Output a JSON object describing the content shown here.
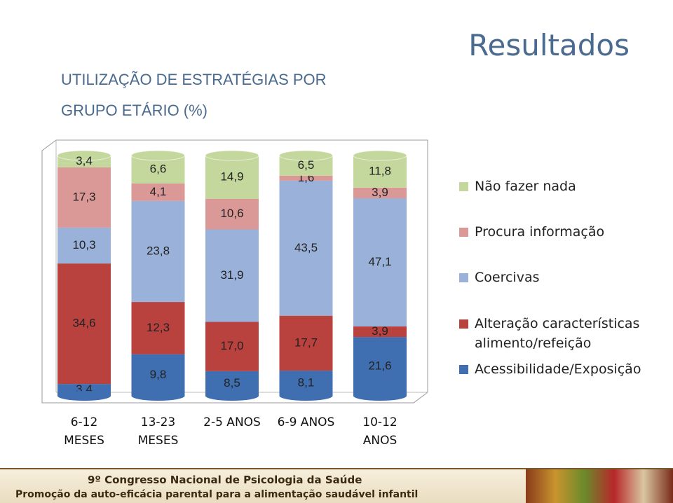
{
  "header": {
    "title": "Resultados",
    "subtitle": "UTILIZAÇÃO DE ESTRATÉGIAS POR GRUPO ETÁRIO (%)"
  },
  "chart_data": {
    "type": "bar",
    "stacking": "percent",
    "categories": [
      "6-12\nMESES",
      "13-23\nMESES",
      "2-5 ANOS",
      "6-9 ANOS",
      "10-12\nANOS"
    ],
    "series": [
      {
        "name": "Acessibilidade/Exposição",
        "color": "#3f6fb0",
        "values": [
          3.4,
          9.8,
          8.5,
          8.1,
          21.6
        ],
        "value_labels": [
          "3,4",
          "9,8",
          "8,5",
          "8,1",
          "21,6"
        ]
      },
      {
        "name": "Alteração características alimento/refeição",
        "color": "#b9413e",
        "values": [
          34.6,
          12.3,
          17.0,
          17.7,
          3.9
        ],
        "value_labels": [
          "34,6",
          "12,3",
          "17,0",
          "17,7",
          "3,9"
        ]
      },
      {
        "name": "Coercivas",
        "color": "#9ab2da",
        "values": [
          10.3,
          23.8,
          31.9,
          43.5,
          47.1
        ],
        "value_labels": [
          "10,3",
          "23,8",
          "31,9",
          "43,5",
          "47,1"
        ]
      },
      {
        "name": "Procura informação",
        "color": "#da9896",
        "values": [
          17.3,
          4.1,
          10.6,
          1.6,
          3.9
        ],
        "value_labels": [
          "17,3",
          "4,1",
          "10,6",
          "1,6",
          "3,9"
        ]
      },
      {
        "name": "Não fazer nada",
        "color": "#c4d89d",
        "values": [
          3.4,
          6.6,
          14.9,
          6.5,
          11.8
        ],
        "value_labels": [
          "3,4",
          "6,6",
          "14,9",
          "6,5",
          "11,8"
        ]
      }
    ]
  },
  "footer": {
    "line1": "9º Congresso Nacional de Psicologia da Saúde",
    "line2": "Promoção da auto-eficácia parental para a alimentação saudável infantil"
  }
}
